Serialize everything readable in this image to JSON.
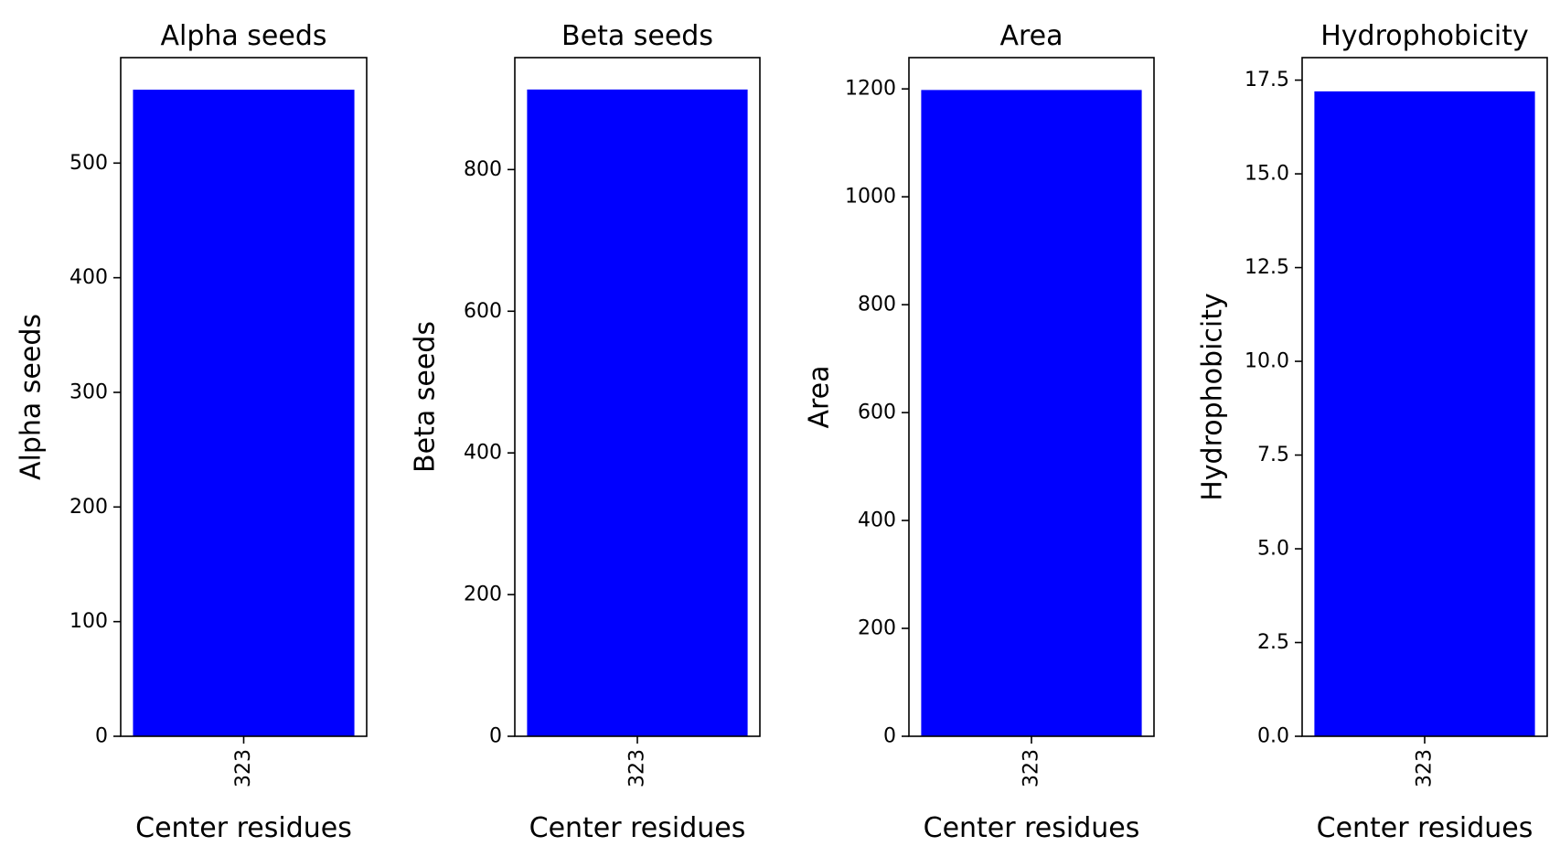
{
  "figure": {
    "bar_color": "#0000ff",
    "axes_color": "#000000",
    "background": "#ffffff"
  },
  "chart_data": [
    {
      "type": "bar",
      "title": "Alpha seeds",
      "xlabel": "Center residues",
      "ylabel": "Alpha seeds",
      "categories": [
        "323"
      ],
      "values": [
        564
      ],
      "ylim": [
        0,
        592
      ],
      "yticks": [
        0,
        100,
        200,
        300,
        400,
        500
      ],
      "ytick_labels": [
        "0",
        "100",
        "200",
        "300",
        "400",
        "500"
      ],
      "grid": false,
      "legend": "none"
    },
    {
      "type": "bar",
      "title": "Beta seeds",
      "xlabel": "Center residues",
      "ylabel": "Beta seeds",
      "categories": [
        "323"
      ],
      "values": [
        913
      ],
      "ylim": [
        0,
        958
      ],
      "yticks": [
        0,
        200,
        400,
        600,
        800
      ],
      "ytick_labels": [
        "0",
        "200",
        "400",
        "600",
        "800"
      ],
      "grid": false,
      "legend": "none"
    },
    {
      "type": "bar",
      "title": "Area",
      "xlabel": "Center residues",
      "ylabel": "Area",
      "categories": [
        "323"
      ],
      "values": [
        1198
      ],
      "ylim": [
        0,
        1258
      ],
      "yticks": [
        0,
        200,
        400,
        600,
        800,
        1000,
        1200
      ],
      "ytick_labels": [
        "0",
        "200",
        "400",
        "600",
        "800",
        "1000",
        "1200"
      ],
      "grid": false,
      "legend": "none"
    },
    {
      "type": "bar",
      "title": "Hydrophobicity",
      "xlabel": "Center residues",
      "ylabel": "Hydrophobicity",
      "categories": [
        "323"
      ],
      "values": [
        17.2
      ],
      "ylim": [
        0,
        18.1
      ],
      "yticks": [
        0,
        2.5,
        5,
        7.5,
        10,
        12.5,
        15,
        17.5
      ],
      "ytick_labels": [
        "0.0",
        "2.5",
        "5.0",
        "7.5",
        "10.0",
        "12.5",
        "15.0",
        "17.5"
      ],
      "grid": false,
      "legend": "none"
    }
  ]
}
